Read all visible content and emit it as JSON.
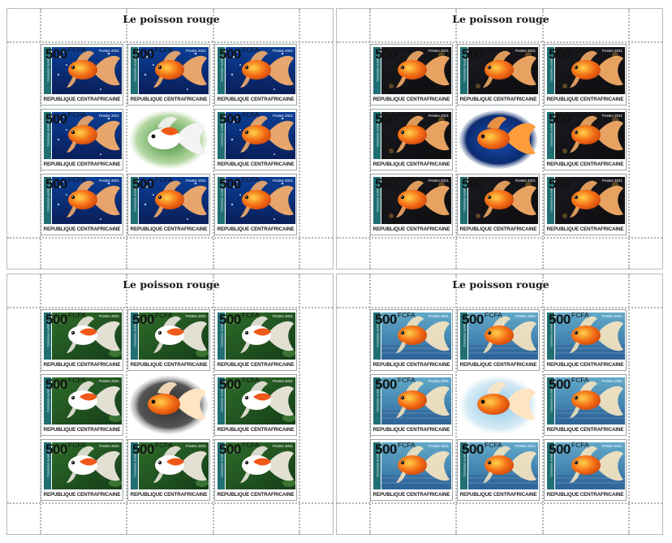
{
  "sheets": [
    {
      "title": "Le poisson rouge",
      "theme": "blue-bubbles",
      "stamps": [
        {
          "value": "500",
          "currency": "FCFA",
          "year": "Postes 2021",
          "country": "REPUBLIQUE CENTRAFRICAINE",
          "side": "Carassius auratus"
        },
        {
          "value": "500",
          "currency": "FCFA",
          "year": "Postes 2021",
          "country": "REPUBLIQUE CENTRAFRICAINE",
          "side": "Carassius auratus"
        },
        {
          "value": "500",
          "currency": "FCFA",
          "year": "Postes 2021",
          "country": "REPUBLIQUE CENTRAFRICAINE",
          "side": "Carassius auratus"
        },
        {
          "value": "500",
          "currency": "FCFA",
          "year": "Postes 2021",
          "country": "REPUBLIQUE CENTRAFRICAINE",
          "side": "Carassius auratus"
        },
        {
          "value": "500",
          "currency": "FCFA",
          "year": "Postes 2021",
          "country": "REPUBLIQUE CENTRAFRICAINE",
          "side": "Carassius auratus"
        },
        {
          "value": "500",
          "currency": "FCFA",
          "year": "Postes 2021",
          "country": "REPUBLIQUE CENTRAFRICAINE",
          "side": "Carassius auratus"
        },
        {
          "value": "500",
          "currency": "FCFA",
          "year": "Postes 2021",
          "country": "REPUBLIQUE CENTRAFRICAINE",
          "side": "Carassius auratus"
        },
        {
          "value": "500",
          "currency": "FCFA",
          "year": "Postes 2021",
          "country": "REPUBLIQUE CENTRAFRICAINE",
          "side": "Carassius auratus"
        }
      ]
    },
    {
      "title": "Le poisson rouge",
      "theme": "dark",
      "stamps": [
        {
          "value": "500",
          "currency": "FCFA",
          "year": "Postes 2021",
          "country": "REPUBLIQUE CENTRAFRICAINE",
          "side": "Carassius auratus"
        },
        {
          "value": "500",
          "currency": "FCFA",
          "year": "Postes 2021",
          "country": "REPUBLIQUE CENTRAFRICAINE",
          "side": "Carassius auratus"
        },
        {
          "value": "500",
          "currency": "FCFA",
          "year": "Postes 2021",
          "country": "REPUBLIQUE CENTRAFRICAINE",
          "side": "Carassius auratus"
        },
        {
          "value": "500",
          "currency": "FCFA",
          "year": "Postes 2021",
          "country": "REPUBLIQUE CENTRAFRICAINE",
          "side": "Carassius auratus"
        },
        {
          "value": "500",
          "currency": "FCFA",
          "year": "Postes 2021",
          "country": "REPUBLIQUE CENTRAFRICAINE",
          "side": "Carassius auratus"
        },
        {
          "value": "500",
          "currency": "FCFA",
          "year": "Postes 2021",
          "country": "REPUBLIQUE CENTRAFRICAINE",
          "side": "Carassius auratus"
        },
        {
          "value": "500",
          "currency": "FCFA",
          "year": "Postes 2021",
          "country": "REPUBLIQUE CENTRAFRICAINE",
          "side": "Carassius auratus"
        },
        {
          "value": "500",
          "currency": "FCFA",
          "year": "Postes 2021",
          "country": "REPUBLIQUE CENTRAFRICAINE",
          "side": "Carassius auratus"
        }
      ]
    },
    {
      "title": "Le poisson rouge",
      "theme": "green",
      "stamps": [
        {
          "value": "500",
          "currency": "FCFA",
          "year": "Postes 2021",
          "country": "REPUBLIQUE CENTRAFRICAINE",
          "side": "Carassius auratus"
        },
        {
          "value": "500",
          "currency": "FCFA",
          "year": "Postes 2021",
          "country": "REPUBLIQUE CENTRAFRICAINE",
          "side": "Carassius auratus"
        },
        {
          "value": "500",
          "currency": "FCFA",
          "year": "Postes 2021",
          "country": "REPUBLIQUE CENTRAFRICAINE",
          "side": "Carassius auratus"
        },
        {
          "value": "500",
          "currency": "FCFA",
          "year": "Postes 2021",
          "country": "REPUBLIQUE CENTRAFRICAINE",
          "side": "Carassius auratus"
        },
        {
          "value": "500",
          "currency": "FCFA",
          "year": "Postes 2021",
          "country": "REPUBLIQUE CENTRAFRICAINE",
          "side": "Carassius auratus"
        },
        {
          "value": "500",
          "currency": "FCFA",
          "year": "Postes 2021",
          "country": "REPUBLIQUE CENTRAFRICAINE",
          "side": "Carassius auratus"
        },
        {
          "value": "500",
          "currency": "FCFA",
          "year": "Postes 2021",
          "country": "REPUBLIQUE CENTRAFRICAINE",
          "side": "Carassius auratus"
        },
        {
          "value": "500",
          "currency": "FCFA",
          "year": "Postes 2021",
          "country": "REPUBLIQUE CENTRAFRICAINE",
          "side": "Carassius auratus"
        }
      ]
    },
    {
      "title": "Le poisson rouge",
      "theme": "aqua",
      "stamps": [
        {
          "value": "500",
          "currency": "FCFA",
          "year": "Postes 2021",
          "country": "REPUBLIQUE CENTRAFRICAINE",
          "side": "Carassius auratus"
        },
        {
          "value": "500",
          "currency": "FCFA",
          "year": "Postes 2021",
          "country": "REPUBLIQUE CENTRAFRICAINE",
          "side": "Carassius auratus"
        },
        {
          "value": "500",
          "currency": "FCFA",
          "year": "Postes 2021",
          "country": "REPUBLIQUE CENTRAFRICAINE",
          "side": "Carassius auratus"
        },
        {
          "value": "500",
          "currency": "FCFA",
          "year": "Postes 2021",
          "country": "REPUBLIQUE CENTRAFRICAINE",
          "side": "Carassius auratus"
        },
        {
          "value": "500",
          "currency": "FCFA",
          "year": "Postes 2021",
          "country": "REPUBLIQUE CENTRAFRICAINE",
          "side": "Carassius auratus"
        },
        {
          "value": "500",
          "currency": "FCFA",
          "year": "Postes 2021",
          "country": "REPUBLIQUE CENTRAFRICAINE",
          "side": "Carassius auratus"
        },
        {
          "value": "500",
          "currency": "FCFA",
          "year": "Postes 2021",
          "country": "REPUBLIQUE CENTRAFRICAINE",
          "side": "Carassius auratus"
        },
        {
          "value": "500",
          "currency": "FCFA",
          "year": "Postes 2021",
          "country": "REPUBLIQUE CENTRAFRICAINE",
          "side": "Carassius auratus"
        }
      ]
    }
  ],
  "colors": {
    "stamp_strip": "#1f6f73",
    "perforation": "#b3b3b3",
    "goldfish_orange": "#f26a1b",
    "goldfish_white": "#ffffff"
  }
}
